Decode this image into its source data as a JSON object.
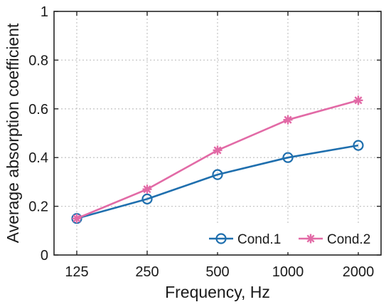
{
  "chart_data": {
    "type": "line",
    "title": "",
    "xlabel": "Frequency, Hz",
    "ylabel": "Average absorption coefficient",
    "categories": [
      "125",
      "250",
      "500",
      "1000",
      "2000"
    ],
    "ylim": [
      0,
      1
    ],
    "yticks": [
      "0",
      "0.2",
      "0.4",
      "0.6",
      "0.8",
      "1"
    ],
    "grid": true,
    "legend_position": "bottom-right",
    "series": [
      {
        "name": "Cond.1",
        "values": [
          0.15,
          0.23,
          0.33,
          0.4,
          0.45
        ],
        "color": "#1f6fae",
        "marker": "circle"
      },
      {
        "name": "Cond.2",
        "values": [
          0.15,
          0.27,
          0.43,
          0.555,
          0.635
        ],
        "color": "#e26aa6",
        "marker": "asterisk"
      }
    ]
  }
}
